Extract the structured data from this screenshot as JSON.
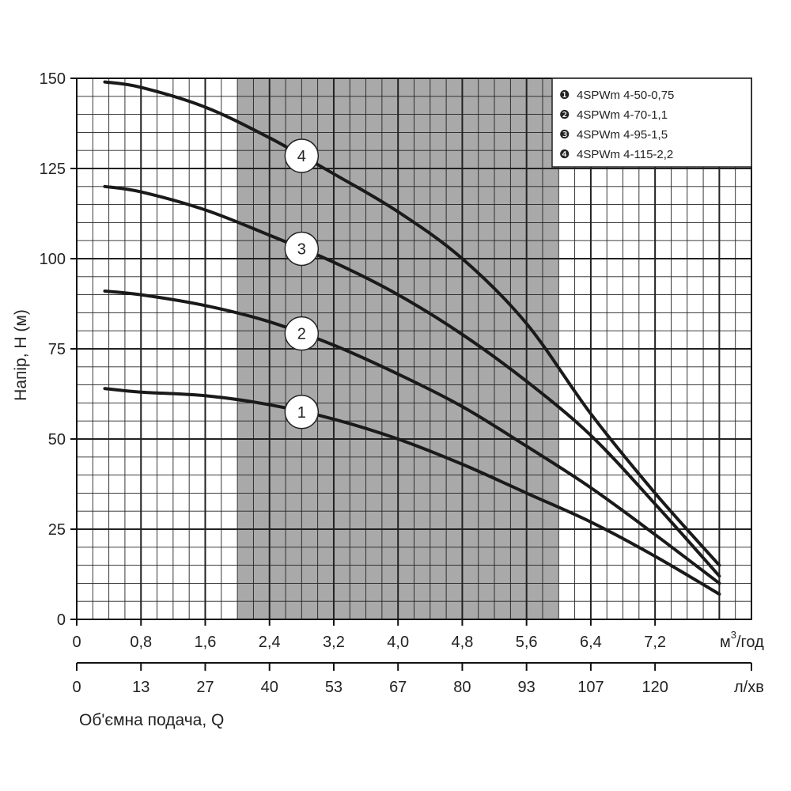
{
  "chart_data": {
    "type": "line",
    "colors": {
      "band": "#a9a9a9",
      "curve": "#1a1a1a",
      "grid": "#222222"
    },
    "y_axis": {
      "label": "Напір, Н (м)",
      "range": [
        0,
        150
      ],
      "ticks": [
        0,
        25,
        50,
        75,
        100,
        125,
        150
      ]
    },
    "x_axis_m3h": {
      "unit": "м³/год",
      "unit_main": "м",
      "unit_sup": "3",
      "unit_rest": "/год",
      "range": [
        0,
        8.4
      ],
      "ticks": [
        0,
        0.8,
        1.6,
        2.4,
        3.2,
        4.0,
        4.8,
        5.6,
        6.4,
        7.2
      ],
      "tick_labels": [
        "0",
        "0,8",
        "1,6",
        "2,4",
        "3,2",
        "4,0",
        "4,8",
        "5,6",
        "6,4",
        "7,2"
      ]
    },
    "x_axis_lpm": {
      "unit": "л/хв",
      "tick_labels": [
        "0",
        "13",
        "27",
        "40",
        "53",
        "67",
        "80",
        "93",
        "107",
        "120"
      ],
      "label": "Об'ємна подача, Q"
    },
    "recommended_range_m3h": [
      2.0,
      6.0
    ],
    "series": [
      {
        "name": "4SPWm 4-50-0,75",
        "marker": "1",
        "legend_bullet": "❶",
        "x": [
          0.35,
          0.8,
          1.6,
          2.4,
          3.2,
          4.0,
          4.8,
          5.6,
          6.4,
          7.2,
          8.0
        ],
        "y": [
          64,
          63,
          62,
          59.5,
          55.5,
          50,
          43,
          35,
          27,
          17.5,
          7
        ],
        "label_at": 2.8
      },
      {
        "name": "4SPWm 4-70-1,1",
        "marker": "2",
        "legend_bullet": "❷",
        "x": [
          0.35,
          0.8,
          1.6,
          2.4,
          3.2,
          4.0,
          4.8,
          5.6,
          6.4,
          7.2,
          8.0
        ],
        "y": [
          91,
          90,
          87,
          82.5,
          76,
          68,
          59,
          48,
          36.5,
          23.5,
          10
        ],
        "label_at": 2.8
      },
      {
        "name": "4SPWm 4-95-1,5",
        "marker": "3",
        "legend_bullet": "❸",
        "x": [
          0.35,
          0.8,
          1.6,
          2.4,
          3.2,
          4.0,
          4.8,
          5.6,
          6.4,
          7.2,
          8.0
        ],
        "y": [
          120,
          118.5,
          113.5,
          106.5,
          99,
          90,
          79,
          66,
          51,
          32,
          12
        ],
        "label_at": 2.8
      },
      {
        "name": "4SPWm 4-115-2,2",
        "marker": "4",
        "legend_bullet": "❹",
        "x": [
          0.35,
          0.8,
          1.6,
          2.4,
          3.2,
          4.0,
          4.8,
          5.6,
          6.4,
          7.2,
          8.0
        ],
        "y": [
          149,
          147.5,
          142,
          133.5,
          123.5,
          113,
          100,
          82,
          57,
          35,
          15
        ],
        "label_at": 2.8
      }
    ]
  }
}
